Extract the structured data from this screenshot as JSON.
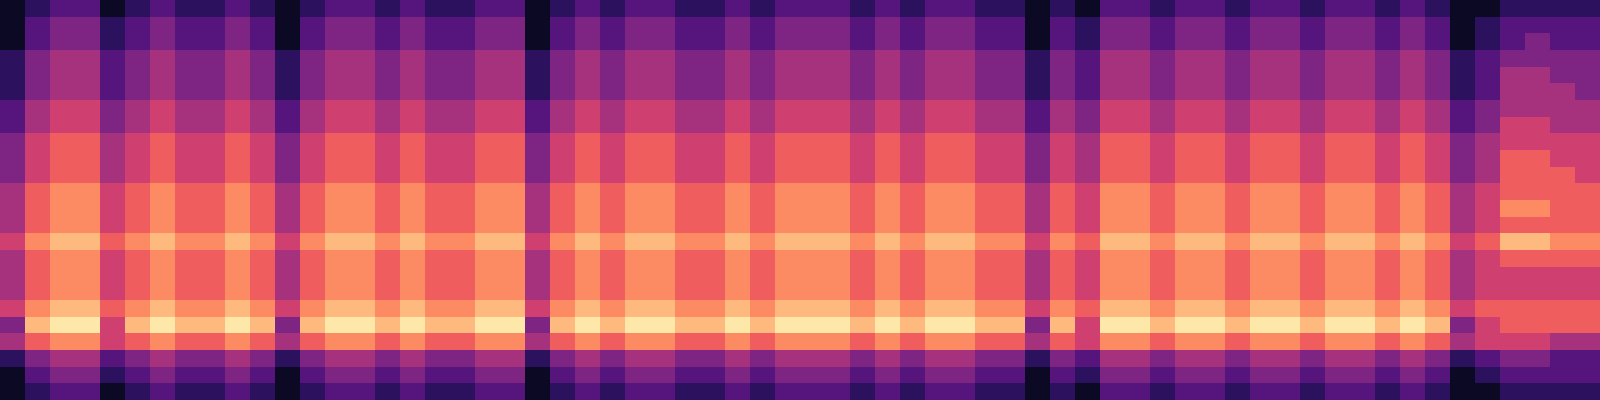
{
  "chart_data": {
    "type": "heatmap",
    "color": "magma",
    "tick_labels": false,
    "zlim": [
      0,
      9
    ],
    "cells": [
      [
        0,
        1,
        2,
        2,
        0,
        1,
        2,
        1,
        1,
        2,
        1,
        0,
        1,
        2,
        2,
        1,
        2,
        1,
        1,
        2,
        2,
        0,
        1,
        2,
        1,
        2,
        2,
        1,
        1,
        2,
        1,
        2,
        2,
        2,
        1,
        2,
        1,
        2,
        2,
        1,
        1,
        0,
        1,
        0,
        2,
        2,
        1,
        2,
        2,
        1,
        2,
        2,
        1,
        2,
        2,
        1,
        2,
        1,
        0,
        0,
        1,
        1,
        1,
        1
      ],
      [
        0,
        2,
        3,
        3,
        1,
        2,
        3,
        2,
        2,
        3,
        2,
        0,
        2,
        3,
        3,
        2,
        3,
        2,
        2,
        3,
        3,
        0,
        2,
        3,
        2,
        3,
        3,
        2,
        2,
        3,
        2,
        3,
        3,
        3,
        2,
        3,
        2,
        3,
        3,
        2,
        2,
        0,
        2,
        1,
        3,
        3,
        2,
        3,
        3,
        2,
        3,
        3,
        2,
        3,
        3,
        2,
        3,
        2,
        0,
        1,
        2,
        2,
        2,
        2
      ],
      [
        0,
        2,
        3,
        3,
        1,
        2,
        3,
        2,
        2,
        3,
        2,
        0,
        2,
        3,
        3,
        2,
        3,
        2,
        2,
        3,
        3,
        0,
        2,
        3,
        2,
        3,
        3,
        2,
        2,
        3,
        2,
        3,
        3,
        3,
        2,
        3,
        2,
        3,
        3,
        2,
        2,
        0,
        2,
        1,
        3,
        3,
        2,
        3,
        3,
        2,
        3,
        3,
        2,
        3,
        3,
        2,
        3,
        2,
        0,
        1,
        2,
        3,
        2,
        2
      ],
      [
        1,
        3,
        4,
        4,
        2,
        3,
        4,
        3,
        3,
        4,
        3,
        1,
        3,
        4,
        4,
        3,
        4,
        3,
        3,
        4,
        4,
        1,
        3,
        4,
        3,
        4,
        4,
        3,
        3,
        4,
        3,
        4,
        4,
        4,
        3,
        4,
        3,
        4,
        4,
        3,
        3,
        1,
        3,
        2,
        4,
        4,
        3,
        4,
        4,
        3,
        4,
        4,
        3,
        4,
        4,
        3,
        4,
        3,
        1,
        2,
        3,
        3,
        3,
        3
      ],
      [
        1,
        3,
        4,
        4,
        2,
        3,
        4,
        3,
        3,
        4,
        3,
        1,
        3,
        4,
        4,
        3,
        4,
        3,
        3,
        4,
        4,
        1,
        3,
        4,
        3,
        4,
        4,
        3,
        3,
        4,
        3,
        4,
        4,
        4,
        3,
        4,
        3,
        4,
        4,
        3,
        3,
        1,
        3,
        2,
        4,
        4,
        3,
        4,
        4,
        3,
        4,
        4,
        3,
        4,
        4,
        3,
        4,
        3,
        1,
        2,
        4,
        4,
        3,
        3
      ],
      [
        1,
        3,
        4,
        4,
        2,
        3,
        4,
        3,
        3,
        4,
        3,
        1,
        3,
        4,
        4,
        3,
        4,
        3,
        3,
        4,
        4,
        1,
        3,
        4,
        3,
        4,
        4,
        3,
        3,
        4,
        3,
        4,
        4,
        4,
        3,
        4,
        3,
        4,
        4,
        3,
        3,
        1,
        3,
        2,
        4,
        4,
        3,
        4,
        4,
        3,
        4,
        4,
        3,
        4,
        4,
        3,
        4,
        3,
        1,
        2,
        4,
        4,
        4,
        3
      ],
      [
        2,
        4,
        5,
        5,
        3,
        4,
        5,
        4,
        4,
        5,
        4,
        2,
        4,
        5,
        5,
        4,
        5,
        4,
        4,
        5,
        5,
        2,
        4,
        5,
        4,
        5,
        5,
        4,
        4,
        5,
        4,
        5,
        5,
        5,
        4,
        5,
        4,
        5,
        5,
        4,
        4,
        2,
        4,
        3,
        5,
        5,
        4,
        5,
        5,
        4,
        5,
        5,
        4,
        5,
        5,
        4,
        5,
        4,
        2,
        3,
        4,
        4,
        4,
        4
      ],
      [
        2,
        4,
        5,
        5,
        3,
        4,
        5,
        4,
        4,
        5,
        4,
        2,
        4,
        5,
        5,
        4,
        5,
        4,
        4,
        5,
        5,
        2,
        4,
        5,
        4,
        5,
        5,
        4,
        4,
        5,
        4,
        5,
        5,
        5,
        4,
        5,
        4,
        5,
        5,
        4,
        4,
        2,
        4,
        3,
        5,
        5,
        4,
        5,
        5,
        4,
        5,
        5,
        4,
        5,
        5,
        4,
        5,
        4,
        2,
        3,
        5,
        5,
        4,
        4
      ],
      [
        3,
        5,
        6,
        6,
        4,
        5,
        6,
        5,
        5,
        6,
        5,
        3,
        5,
        6,
        6,
        5,
        6,
        5,
        5,
        6,
        6,
        3,
        5,
        6,
        5,
        6,
        6,
        5,
        5,
        6,
        5,
        6,
        6,
        6,
        5,
        6,
        5,
        6,
        6,
        5,
        5,
        3,
        5,
        4,
        6,
        6,
        5,
        6,
        6,
        5,
        6,
        6,
        5,
        6,
        6,
        5,
        6,
        5,
        3,
        4,
        5,
        5,
        5,
        5
      ],
      [
        3,
        5,
        6,
        6,
        4,
        5,
        6,
        5,
        5,
        6,
        5,
        3,
        5,
        6,
        6,
        5,
        6,
        5,
        5,
        6,
        6,
        3,
        5,
        6,
        5,
        6,
        6,
        5,
        5,
        6,
        5,
        6,
        6,
        6,
        5,
        6,
        5,
        6,
        6,
        5,
        5,
        3,
        5,
        4,
        6,
        6,
        5,
        6,
        6,
        5,
        6,
        6,
        5,
        6,
        6,
        5,
        6,
        5,
        3,
        4,
        6,
        6,
        5,
        5
      ],
      [
        3,
        5,
        6,
        6,
        4,
        5,
        6,
        5,
        5,
        6,
        5,
        3,
        5,
        6,
        6,
        5,
        6,
        5,
        5,
        6,
        6,
        3,
        5,
        6,
        5,
        6,
        6,
        5,
        5,
        6,
        5,
        6,
        6,
        6,
        5,
        6,
        5,
        6,
        6,
        5,
        5,
        3,
        5,
        4,
        6,
        6,
        5,
        6,
        6,
        5,
        6,
        6,
        5,
        6,
        6,
        5,
        6,
        5,
        3,
        4,
        6,
        6,
        6,
        5
      ],
      [
        4,
        6,
        7,
        7,
        5,
        6,
        7,
        6,
        6,
        7,
        6,
        4,
        6,
        7,
        7,
        6,
        7,
        6,
        6,
        7,
        7,
        4,
        6,
        7,
        6,
        7,
        7,
        6,
        6,
        7,
        6,
        7,
        7,
        7,
        6,
        7,
        6,
        7,
        7,
        6,
        6,
        4,
        6,
        5,
        7,
        7,
        6,
        7,
        7,
        6,
        7,
        7,
        6,
        7,
        7,
        6,
        7,
        6,
        4,
        5,
        6,
        6,
        6,
        6
      ],
      [
        4,
        6,
        7,
        7,
        5,
        6,
        7,
        6,
        6,
        7,
        6,
        4,
        6,
        7,
        7,
        6,
        7,
        6,
        6,
        7,
        7,
        4,
        6,
        7,
        6,
        7,
        7,
        6,
        6,
        7,
        6,
        7,
        7,
        7,
        6,
        7,
        6,
        7,
        7,
        6,
        6,
        4,
        6,
        5,
        7,
        7,
        6,
        7,
        7,
        6,
        7,
        7,
        6,
        7,
        7,
        6,
        7,
        6,
        4,
        5,
        7,
        7,
        6,
        6
      ],
      [
        4,
        6,
        7,
        7,
        5,
        6,
        7,
        6,
        6,
        7,
        6,
        4,
        6,
        7,
        7,
        6,
        7,
        6,
        6,
        7,
        7,
        4,
        6,
        7,
        6,
        7,
        7,
        6,
        6,
        7,
        6,
        7,
        7,
        7,
        6,
        7,
        6,
        7,
        7,
        6,
        6,
        4,
        6,
        5,
        7,
        7,
        6,
        7,
        7,
        6,
        7,
        7,
        6,
        7,
        7,
        6,
        7,
        6,
        4,
        5,
        6,
        6,
        6,
        6
      ],
      [
        5,
        7,
        8,
        8,
        6,
        7,
        8,
        7,
        7,
        8,
        7,
        5,
        7,
        8,
        8,
        7,
        8,
        7,
        7,
        8,
        8,
        5,
        7,
        8,
        7,
        8,
        8,
        7,
        7,
        8,
        7,
        8,
        8,
        8,
        7,
        8,
        7,
        8,
        8,
        7,
        7,
        5,
        7,
        6,
        8,
        8,
        7,
        8,
        8,
        7,
        8,
        8,
        7,
        8,
        8,
        7,
        8,
        7,
        5,
        6,
        8,
        8,
        7,
        7
      ],
      [
        4,
        6,
        7,
        7,
        5,
        6,
        7,
        6,
        6,
        7,
        6,
        4,
        6,
        7,
        7,
        6,
        7,
        6,
        6,
        7,
        7,
        4,
        6,
        7,
        6,
        7,
        7,
        6,
        6,
        7,
        6,
        7,
        7,
        7,
        6,
        7,
        6,
        7,
        7,
        6,
        6,
        4,
        6,
        5,
        7,
        7,
        6,
        7,
        7,
        6,
        7,
        7,
        6,
        7,
        7,
        6,
        7,
        6,
        4,
        5,
        6,
        6,
        6,
        6
      ],
      [
        4,
        6,
        7,
        7,
        5,
        6,
        7,
        6,
        6,
        7,
        6,
        4,
        6,
        7,
        7,
        6,
        7,
        6,
        6,
        7,
        7,
        4,
        6,
        7,
        6,
        7,
        7,
        6,
        6,
        7,
        6,
        7,
        7,
        7,
        6,
        7,
        6,
        7,
        7,
        6,
        6,
        4,
        6,
        5,
        7,
        7,
        6,
        7,
        7,
        6,
        7,
        7,
        6,
        7,
        7,
        6,
        7,
        6,
        4,
        5,
        5,
        5,
        5,
        5
      ],
      [
        4,
        6,
        7,
        7,
        5,
        6,
        7,
        6,
        6,
        7,
        6,
        4,
        6,
        7,
        7,
        6,
        7,
        6,
        6,
        7,
        7,
        4,
        6,
        7,
        6,
        7,
        7,
        6,
        6,
        7,
        6,
        7,
        7,
        7,
        6,
        7,
        6,
        7,
        7,
        6,
        6,
        4,
        6,
        5,
        7,
        7,
        6,
        7,
        7,
        6,
        7,
        7,
        6,
        7,
        7,
        6,
        7,
        6,
        4,
        5,
        5,
        5,
        5,
        5
      ],
      [
        5,
        7,
        8,
        8,
        6,
        7,
        8,
        7,
        7,
        8,
        7,
        5,
        7,
        8,
        8,
        7,
        8,
        7,
        7,
        8,
        8,
        5,
        7,
        8,
        7,
        8,
        8,
        7,
        7,
        8,
        7,
        8,
        8,
        8,
        7,
        8,
        7,
        8,
        8,
        7,
        7,
        5,
        7,
        6,
        8,
        8,
        7,
        8,
        8,
        7,
        8,
        8,
        7,
        8,
        8,
        7,
        8,
        7,
        5,
        6,
        6,
        6,
        6,
        6
      ],
      [
        3,
        8,
        9,
        9,
        5,
        8,
        9,
        8,
        8,
        9,
        8,
        3,
        8,
        9,
        9,
        8,
        9,
        8,
        8,
        9,
        9,
        3,
        8,
        9,
        8,
        9,
        9,
        8,
        8,
        9,
        8,
        9,
        9,
        9,
        8,
        9,
        8,
        9,
        9,
        8,
        8,
        3,
        8,
        5,
        9,
        9,
        8,
        9,
        9,
        8,
        9,
        9,
        8,
        9,
        9,
        8,
        9,
        8,
        3,
        5,
        6,
        6,
        6,
        6
      ],
      [
        4,
        6,
        7,
        7,
        5,
        6,
        7,
        6,
        6,
        7,
        6,
        4,
        6,
        7,
        7,
        6,
        7,
        6,
        6,
        7,
        7,
        4,
        6,
        7,
        6,
        7,
        7,
        6,
        6,
        7,
        6,
        7,
        7,
        7,
        6,
        7,
        6,
        7,
        7,
        6,
        6,
        4,
        6,
        5,
        7,
        7,
        6,
        7,
        7,
        6,
        7,
        7,
        6,
        7,
        7,
        6,
        7,
        6,
        4,
        5,
        5,
        5,
        4,
        4
      ],
      [
        1,
        3,
        4,
        4,
        2,
        3,
        4,
        3,
        3,
        4,
        3,
        1,
        3,
        4,
        4,
        3,
        4,
        3,
        3,
        4,
        4,
        1,
        3,
        4,
        3,
        4,
        4,
        3,
        3,
        4,
        3,
        4,
        4,
        4,
        3,
        4,
        3,
        4,
        4,
        3,
        3,
        1,
        3,
        2,
        4,
        4,
        3,
        4,
        4,
        3,
        4,
        4,
        3,
        4,
        4,
        3,
        4,
        3,
        1,
        2,
        3,
        3,
        2,
        2
      ],
      [
        0,
        2,
        3,
        3,
        1,
        2,
        3,
        2,
        2,
        3,
        2,
        0,
        2,
        3,
        3,
        2,
        3,
        2,
        2,
        3,
        3,
        0,
        2,
        3,
        2,
        3,
        3,
        2,
        2,
        3,
        2,
        3,
        3,
        3,
        2,
        3,
        2,
        3,
        3,
        2,
        2,
        0,
        2,
        1,
        3,
        3,
        2,
        3,
        3,
        2,
        3,
        3,
        2,
        3,
        3,
        2,
        3,
        2,
        0,
        1,
        2,
        2,
        2,
        2
      ],
      [
        0,
        1,
        2,
        2,
        0,
        1,
        2,
        1,
        1,
        2,
        1,
        0,
        1,
        2,
        2,
        1,
        2,
        1,
        1,
        2,
        2,
        0,
        1,
        2,
        1,
        2,
        2,
        1,
        1,
        2,
        1,
        2,
        2,
        2,
        1,
        2,
        1,
        2,
        2,
        1,
        1,
        0,
        1,
        0,
        2,
        2,
        1,
        2,
        2,
        1,
        2,
        2,
        1,
        2,
        2,
        1,
        2,
        1,
        0,
        0,
        1,
        1,
        1,
        1
      ]
    ]
  }
}
